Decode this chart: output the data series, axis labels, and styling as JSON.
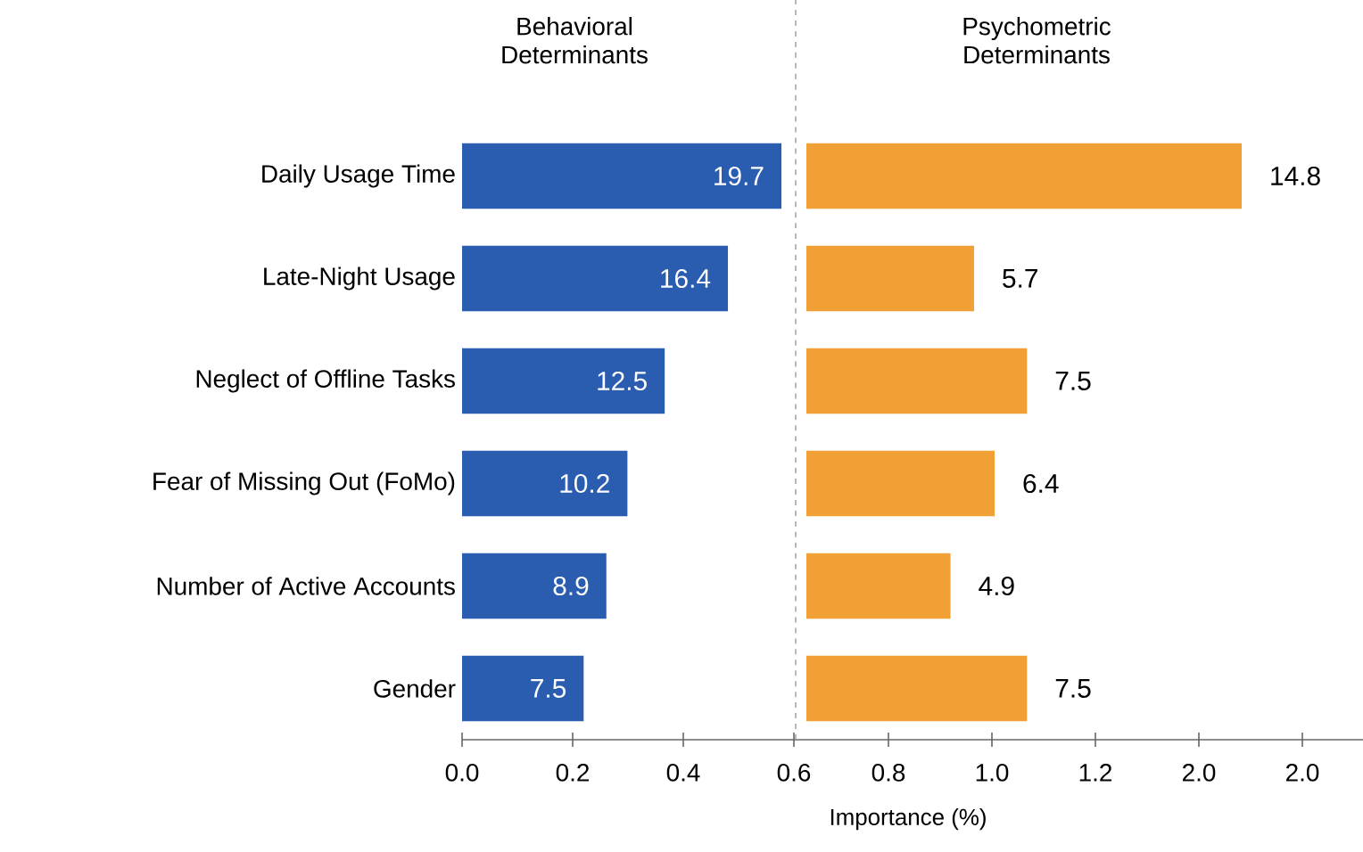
{
  "chart_data": [
    {
      "type": "bar",
      "orientation": "horizontal",
      "title": "Behavioral Determinants",
      "categories": [
        "Daily Usage Time",
        "Late-Night Usage",
        "Neglect of Offline Tasks",
        "Fear of Missing Out (FoMo)",
        "Number of Active Accounts",
        "Gender"
      ],
      "values": [
        19.7,
        16.4,
        12.5,
        10.2,
        8.9,
        7.5
      ],
      "color": "#2a5db0",
      "data_labels": true,
      "annotations": [
        "0.0",
        "0.2",
        "0.4",
        "0.6"
      ]
    },
    {
      "type": "bar",
      "orientation": "horizontal",
      "title": "Psychometric Determinants",
      "xlabel": "Importance (%)",
      "categories": [
        null,
        null,
        null,
        null,
        null,
        null
      ],
      "values": [
        14.8,
        5.7,
        7.5,
        6.4,
        4.9,
        7.5
      ],
      "color": "#f0a035",
      "data_labels": true,
      "annotations": [
        "0.8",
        "1.0",
        "1.2",
        "2.0",
        "2.0"
      ]
    }
  ]
}
